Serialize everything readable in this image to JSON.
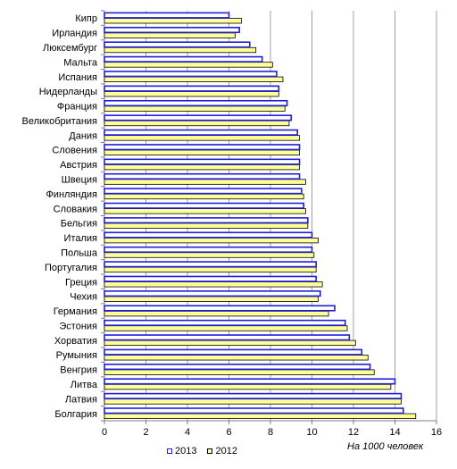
{
  "chart_data": {
    "type": "bar",
    "orientation": "horizontal",
    "categories": [
      "Кипр",
      "Ирландия",
      "Люксембург",
      "Мальта",
      "Испания",
      "Нидерланды",
      "Франция",
      "Великобритания",
      "Дания",
      "Словения",
      "Австрия",
      "Швеция",
      "Финляндия",
      "Словакия",
      "Бельгия",
      "Италия",
      "Польша",
      "Португалия",
      "Греция",
      "Чехия",
      "Германия",
      "Эстония",
      "Хорватия",
      "Румыния",
      "Венгрия",
      "Литва",
      "Латвия",
      "Болгария"
    ],
    "series": [
      {
        "name": "2013",
        "color": "#1f1fd6",
        "values": [
          6.0,
          6.5,
          7.0,
          7.6,
          8.3,
          8.4,
          8.8,
          9.0,
          9.3,
          9.4,
          9.4,
          9.4,
          9.5,
          9.6,
          9.8,
          10.0,
          10.0,
          10.2,
          10.2,
          10.4,
          11.1,
          11.6,
          11.8,
          12.4,
          12.8,
          14.0,
          14.3,
          14.4
        ]
      },
      {
        "name": "2012",
        "color": "#ffff99",
        "values": [
          6.6,
          6.3,
          7.3,
          8.1,
          8.6,
          8.4,
          8.7,
          8.9,
          9.4,
          9.4,
          9.4,
          9.7,
          9.6,
          9.7,
          9.8,
          10.3,
          10.1,
          10.2,
          10.5,
          10.3,
          10.8,
          11.7,
          12.1,
          12.7,
          13.0,
          13.8,
          14.3,
          15.0
        ]
      }
    ],
    "xlim": [
      0,
      16
    ],
    "xticks": [
      "0",
      "2",
      "4",
      "6",
      "8",
      "10",
      "12",
      "14",
      "16"
    ],
    "grid": "vertical",
    "units_label": "На 1000 человек",
    "legend_position": "bottom"
  }
}
